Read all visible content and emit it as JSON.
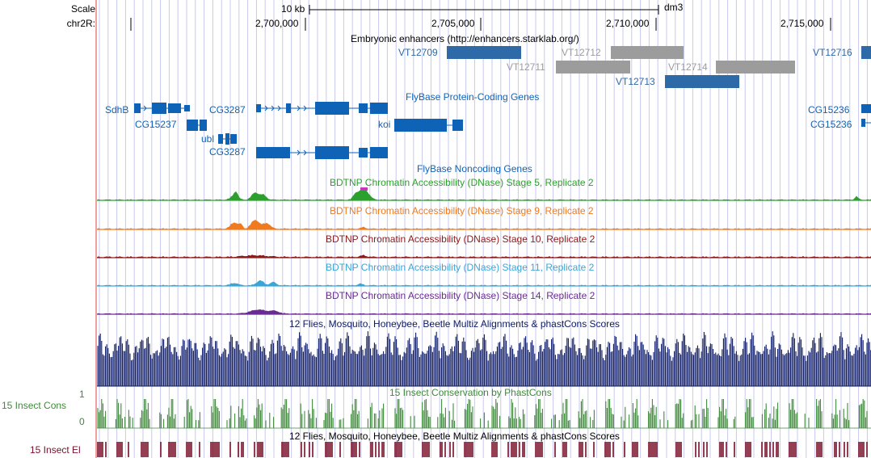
{
  "left_labels": {
    "scale": "Scale",
    "chrom": "chr2R:",
    "cons_track": "15 Insect Cons",
    "cons_max": "1",
    "cons_min": "0",
    "el_track": "15 Insect El"
  },
  "ruler": {
    "scale_text": "10 kb",
    "assembly": "dm3",
    "positions": [
      "2,700,000",
      "2,705,000",
      "2,710,000",
      "2,715,000"
    ]
  },
  "tracks": {
    "enhancers_title": "Embryonic enhancers (http://enhancers.starklab.org/)",
    "genes_title": "FlyBase Protein-Coding Genes",
    "noncoding_title": "FlyBase Noncoding Genes",
    "dnase": [
      {
        "label": "BDTNP Chromatin Accessibility (DNase) Stage 5, Replicate 2",
        "color": "#2ca02c"
      },
      {
        "label": "BDTNP Chromatin Accessibility (DNase) Stage 9, Replicate 2",
        "color": "#f07a1e"
      },
      {
        "label": "BDTNP Chromatin Accessibility (DNase) Stage 10, Replicate 2",
        "color": "#8b1a1a"
      },
      {
        "label": "BDTNP Chromatin Accessibility (DNase) Stage 11, Replicate 2",
        "color": "#3aa6d8"
      },
      {
        "label": "BDTNP Chromatin Accessibility (DNase) Stage 14, Replicate 2",
        "color": "#6a2c91"
      }
    ],
    "multiz_title": "12 Flies, Mosquito, Honeybee, Beetle Multiz Alignments & phastCons Scores",
    "phastcons_title": "15 Insect Conservation by PhastCons",
    "el_title": "12 Flies, Mosquito, Honeybee, Beetle Multiz Alignments & phastCons Scores"
  },
  "enhancers": [
    {
      "name": "VT12709",
      "active": true
    },
    {
      "name": "VT12712",
      "active": false
    },
    {
      "name": "VT12711",
      "active": false
    },
    {
      "name": "VT12714",
      "active": false
    },
    {
      "name": "VT12713",
      "active": true
    },
    {
      "name": "VT12716",
      "active": true
    }
  ],
  "genes": [
    "SdhB",
    "CG15237",
    "CG3287",
    "koi",
    "ubl",
    "CG3287",
    "CG15236",
    "CG15236"
  ],
  "colors": {
    "gene_blue": "#0f63b6",
    "enh_active": "#2e6aa8",
    "enh_inactive": "#9c9c9c",
    "multiz": "#0c1a66",
    "phastcons": "#3f8a3a",
    "elements": "#7a0f2a",
    "grid": "#c9c9ef"
  }
}
